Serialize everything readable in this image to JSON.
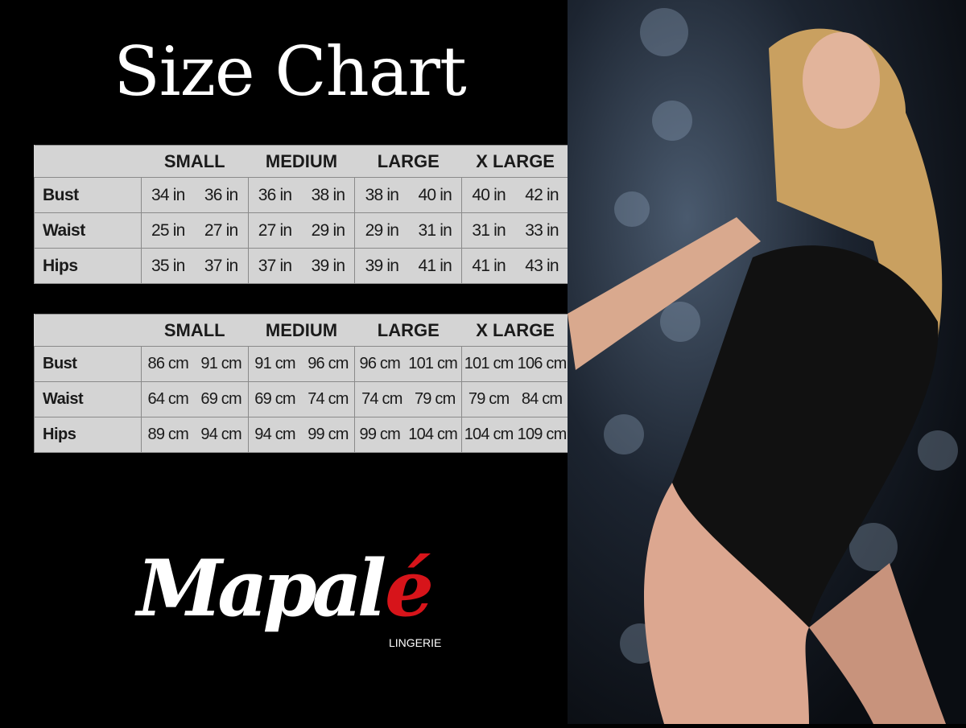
{
  "title": "Size Chart",
  "size_headers": [
    "SMALL",
    "MEDIUM",
    "LARGE",
    "X LARGE"
  ],
  "inches": {
    "rows": [
      {
        "label": "Bust",
        "values": [
          [
            "34 in",
            "36 in"
          ],
          [
            "36 in",
            "38 in"
          ],
          [
            "38 in",
            "40 in"
          ],
          [
            "40 in",
            "42 in"
          ]
        ]
      },
      {
        "label": "Waist",
        "values": [
          [
            "25 in",
            "27 in"
          ],
          [
            "27 in",
            "29 in"
          ],
          [
            "29 in",
            "31 in"
          ],
          [
            "31 in",
            "33 in"
          ]
        ]
      },
      {
        "label": "Hips",
        "values": [
          [
            "35 in",
            "37 in"
          ],
          [
            "37 in",
            "39 in"
          ],
          [
            "39 in",
            "41 in"
          ],
          [
            "41 in",
            "43 in"
          ]
        ]
      }
    ]
  },
  "centimeters": {
    "rows": [
      {
        "label": "Bust",
        "values": [
          [
            "86 cm",
            "91 cm"
          ],
          [
            "91 cm",
            "96 cm"
          ],
          [
            "96 cm",
            "101 cm"
          ],
          [
            "101 cm",
            "106 cm"
          ]
        ]
      },
      {
        "label": "Waist",
        "values": [
          [
            "64 cm",
            "69 cm"
          ],
          [
            "69 cm",
            "74 cm"
          ],
          [
            "74 cm",
            "79 cm"
          ],
          [
            "79 cm",
            "84 cm"
          ]
        ]
      },
      {
        "label": "Hips",
        "values": [
          [
            "89 cm",
            "94 cm"
          ],
          [
            "94 cm",
            "99 cm"
          ],
          [
            "99 cm",
            "104 cm"
          ],
          [
            "104 cm",
            "109 cm"
          ]
        ]
      }
    ]
  },
  "logo": {
    "brand": "Mapalé",
    "sub": "LINGERIE",
    "accent": "#d7141a"
  }
}
